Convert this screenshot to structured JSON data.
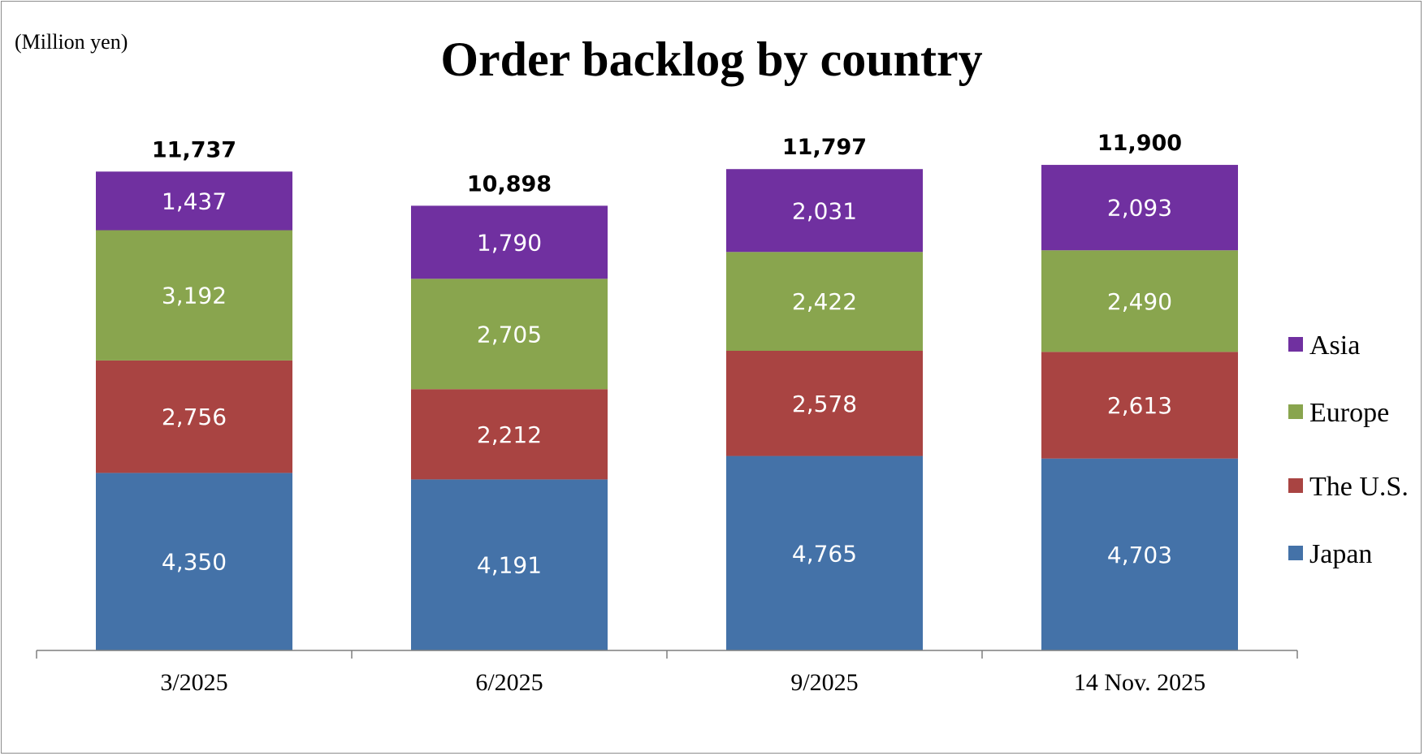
{
  "chart_data": {
    "type": "bar",
    "stacked": true,
    "title": "Order backlog by country",
    "unit_label": "(Million yen)",
    "categories": [
      "3/2025",
      "6/2025",
      "9/2025",
      "14 Nov. 2025"
    ],
    "series": [
      {
        "name": "Japan",
        "color": "#4472a8",
        "values": [
          4350,
          4191,
          4765,
          4703
        ]
      },
      {
        "name": "The U.S.",
        "color": "#a94442",
        "values": [
          2756,
          2212,
          2578,
          2613
        ]
      },
      {
        "name": "Europe",
        "color": "#89a54e",
        "values": [
          3192,
          2705,
          2422,
          2490
        ]
      },
      {
        "name": "Asia",
        "color": "#7030a0",
        "values": [
          1437,
          1790,
          2031,
          2093
        ]
      }
    ],
    "value_labels": [
      [
        "4,350",
        "4,191",
        "4,765",
        "4,703"
      ],
      [
        "2,756",
        "2,212",
        "2,578",
        "2,613"
      ],
      [
        "3,192",
        "2,705",
        "2,422",
        "2,490"
      ],
      [
        "1,437",
        "1,790",
        "2,031",
        "2,093"
      ]
    ],
    "totals": [
      11737,
      10898,
      11797,
      11900
    ],
    "total_labels": [
      "11,737",
      "10,898",
      "11,797",
      "11,900"
    ],
    "legend_order": [
      "Asia",
      "Europe",
      "The U.S.",
      "Japan"
    ],
    "legend_position": "right",
    "ylim": [
      0,
      11900
    ],
    "grid": false
  }
}
